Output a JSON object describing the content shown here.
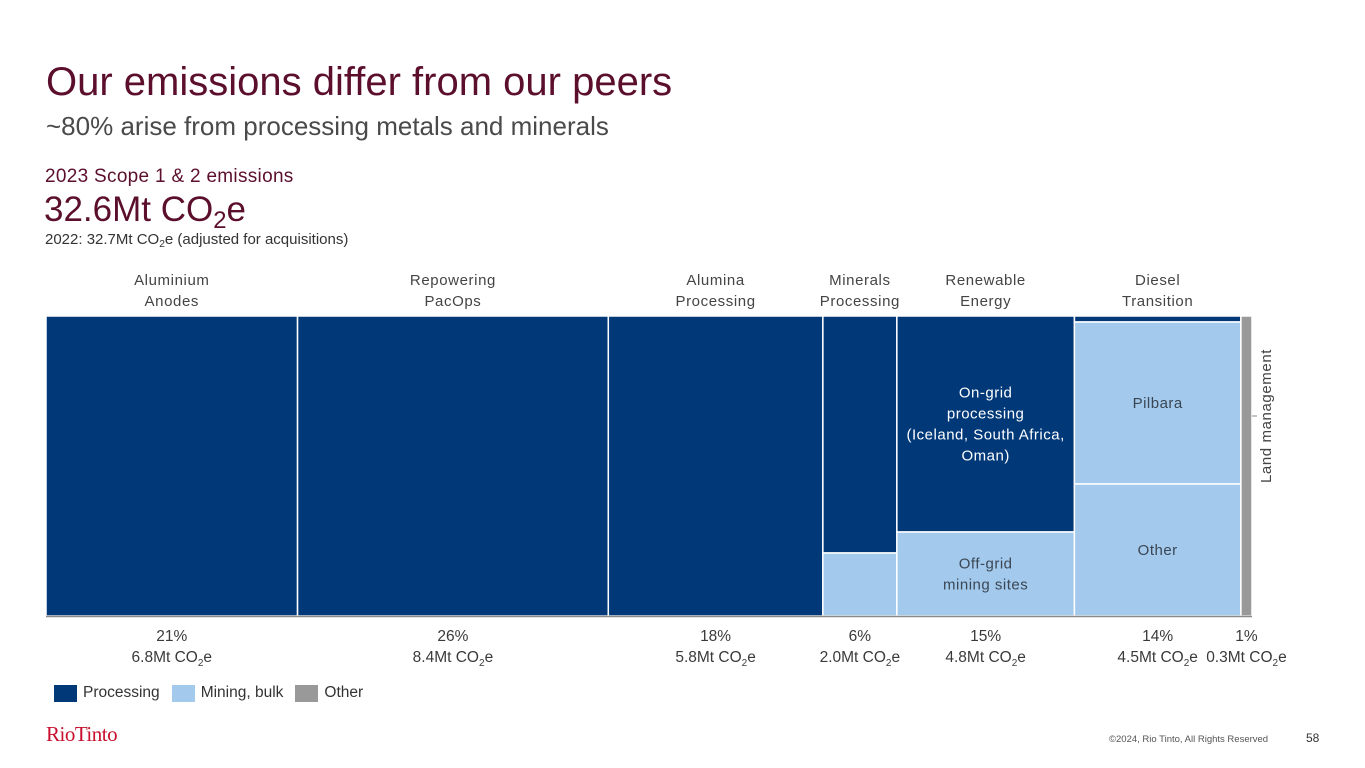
{
  "header": {
    "title": "Our emissions differ from our peers",
    "subtitle": "~80% arise from processing metals and minerals",
    "scope_label": "2023 Scope 1 & 2 emissions",
    "total_value": "32.6Mt CO",
    "total_sub": "2",
    "total_suffix": "e",
    "prev_prefix": "2022: 32.7Mt CO",
    "prev_sub": "2",
    "prev_suffix": "e (adjusted for acquisitions)"
  },
  "colors": {
    "processing": "#003878",
    "mining": "#a3c9ec",
    "other": "#999999",
    "title": "#5b0f2c",
    "logo": "#c8102e"
  },
  "chart_data": {
    "type": "mekko",
    "title": "2023 Scope 1 & 2 emissions",
    "total_mt": 32.6,
    "unit": "Mt CO2e",
    "legend": [
      {
        "name": "Processing",
        "color": "#003878"
      },
      {
        "name": "Mining, bulk",
        "color": "#a3c9ec"
      },
      {
        "name": "Other",
        "color": "#999999"
      }
    ],
    "legend_position": "bottom-left",
    "columns": [
      {
        "label": [
          "Aluminium",
          "Anodes"
        ],
        "pct": "21%",
        "value": 6.8,
        "value_text": "6.8Mt CO",
        "segments": [
          {
            "type": "processing",
            "share": 1.0,
            "label": []
          }
        ]
      },
      {
        "label": [
          "Repowering",
          "PacOps"
        ],
        "pct": "26%",
        "value": 8.4,
        "value_text": "8.4Mt CO",
        "segments": [
          {
            "type": "processing",
            "share": 1.0,
            "label": []
          }
        ]
      },
      {
        "label": [
          "Alumina",
          "Processing"
        ],
        "pct": "18%",
        "value": 5.8,
        "value_text": "5.8Mt CO",
        "segments": [
          {
            "type": "processing",
            "share": 1.0,
            "label": []
          }
        ]
      },
      {
        "label": [
          "Minerals",
          "Processing"
        ],
        "pct": "6%",
        "value": 2.0,
        "value_text": "2.0Mt CO",
        "segments": [
          {
            "type": "processing",
            "share": 0.79,
            "label": []
          },
          {
            "type": "mining",
            "share": 0.21,
            "label": []
          }
        ]
      },
      {
        "label": [
          "Renewable",
          "Energy"
        ],
        "pct": "15%",
        "value": 4.8,
        "value_text": "4.8Mt CO",
        "segments": [
          {
            "type": "processing",
            "share": 0.72,
            "label": [
              "On-grid",
              "processing",
              "(Iceland, South Africa,",
              "Oman)"
            ]
          },
          {
            "type": "mining",
            "share": 0.28,
            "label": [
              "Off-grid",
              "mining sites"
            ]
          }
        ]
      },
      {
        "label": [
          "Diesel",
          "Transition"
        ],
        "pct": "14%",
        "value": 4.5,
        "value_text": "4.5Mt CO",
        "segments": [
          {
            "type": "processing",
            "share": 0.02,
            "label": []
          },
          {
            "type": "mining",
            "share": 0.54,
            "label": [
              "Pilbara"
            ]
          },
          {
            "type": "mining",
            "share": 0.44,
            "label": [
              "Other"
            ]
          }
        ]
      },
      {
        "label": [],
        "side_label": "Land management",
        "pct": "1%",
        "value": 0.3,
        "value_text": "0.3Mt CO",
        "segments": [
          {
            "type": "other",
            "share": 1.0,
            "label": []
          }
        ]
      }
    ]
  },
  "footer": {
    "logo": "RioTinto",
    "copyright": "©2024, Rio Tinto, All Rights Reserved",
    "page": "58"
  }
}
